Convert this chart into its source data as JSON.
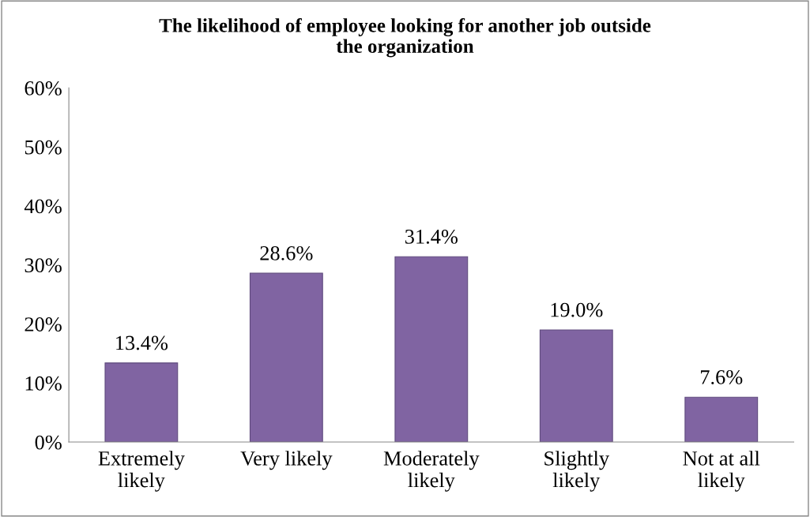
{
  "chart_data": {
    "type": "bar",
    "title": "The likelihood of employee looking for another job outside\nthe organization",
    "categories": [
      "Extremely\nlikely",
      "Very likely",
      "Moderately\nlikely",
      "Slightly\nlikely",
      "Not at all\nlikely"
    ],
    "values": [
      13.4,
      28.6,
      31.4,
      19.0,
      7.6
    ],
    "value_labels": [
      "13.4%",
      "28.6%",
      "31.4%",
      "19.0%",
      "7.6%"
    ],
    "color": "#8064a2",
    "ylim": [
      0,
      60
    ],
    "yticks": [
      {
        "value": 0,
        "label": "0%"
      },
      {
        "value": 10,
        "label": "10%"
      },
      {
        "value": 20,
        "label": "20%"
      },
      {
        "value": 30,
        "label": "30%"
      },
      {
        "value": 40,
        "label": "40%"
      },
      {
        "value": 50,
        "label": "50%"
      },
      {
        "value": 60,
        "label": "60%"
      }
    ],
    "grid": false
  }
}
